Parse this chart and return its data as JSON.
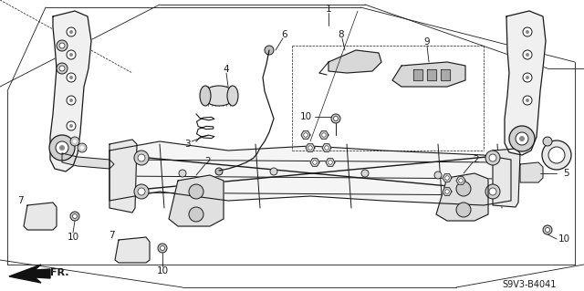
{
  "background_color": "#ffffff",
  "line_color": "#1a1a1a",
  "fig_width": 6.4,
  "fig_height": 3.19,
  "dpi": 100,
  "diagram_label": "S9V3-B4041",
  "label_fontsize": 7.5,
  "diagram_label_fontsize": 7
}
